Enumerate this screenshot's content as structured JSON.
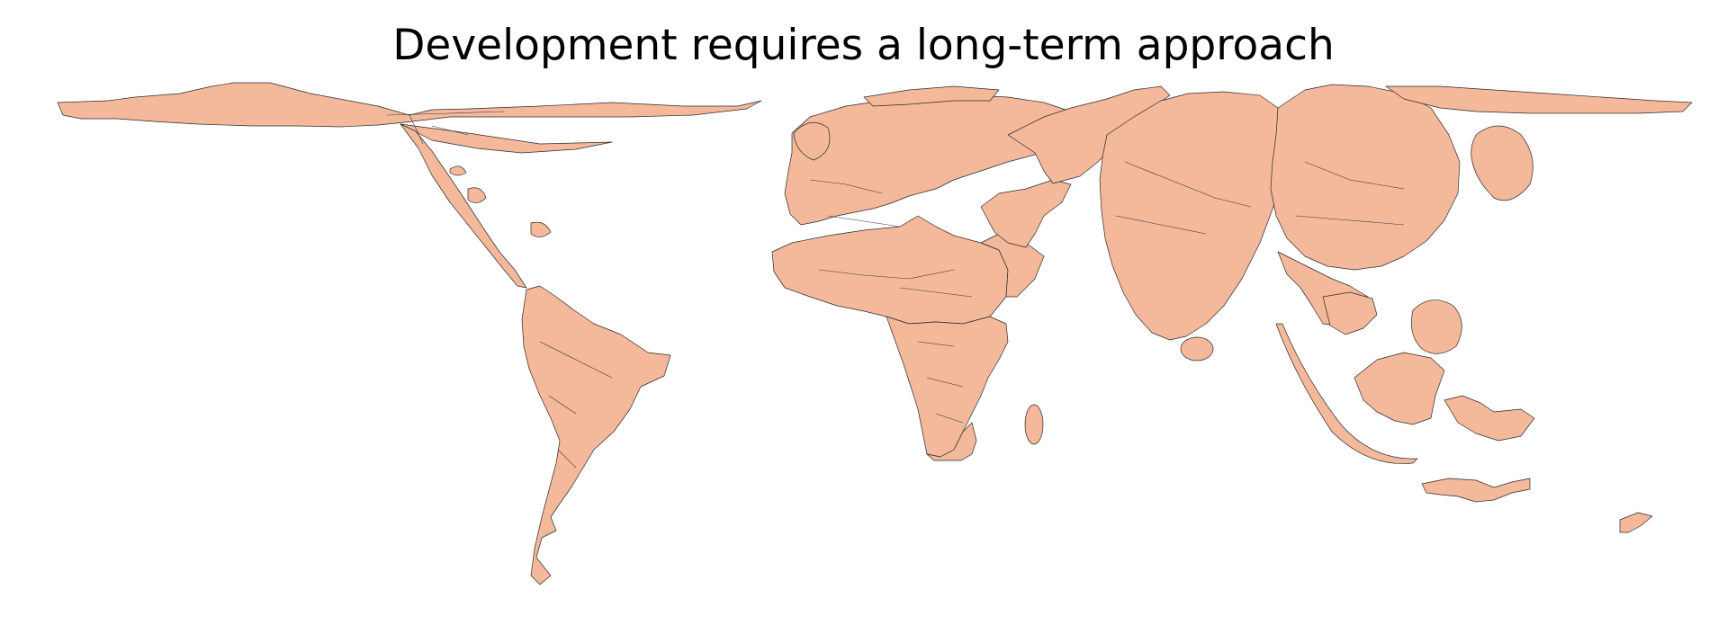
{
  "title": "Development requires a long-term approach",
  "map": {
    "type": "cartogram",
    "fill_color": "#f4b89a",
    "border_color": "#2b2b2b",
    "background_color": "#ffffff"
  }
}
